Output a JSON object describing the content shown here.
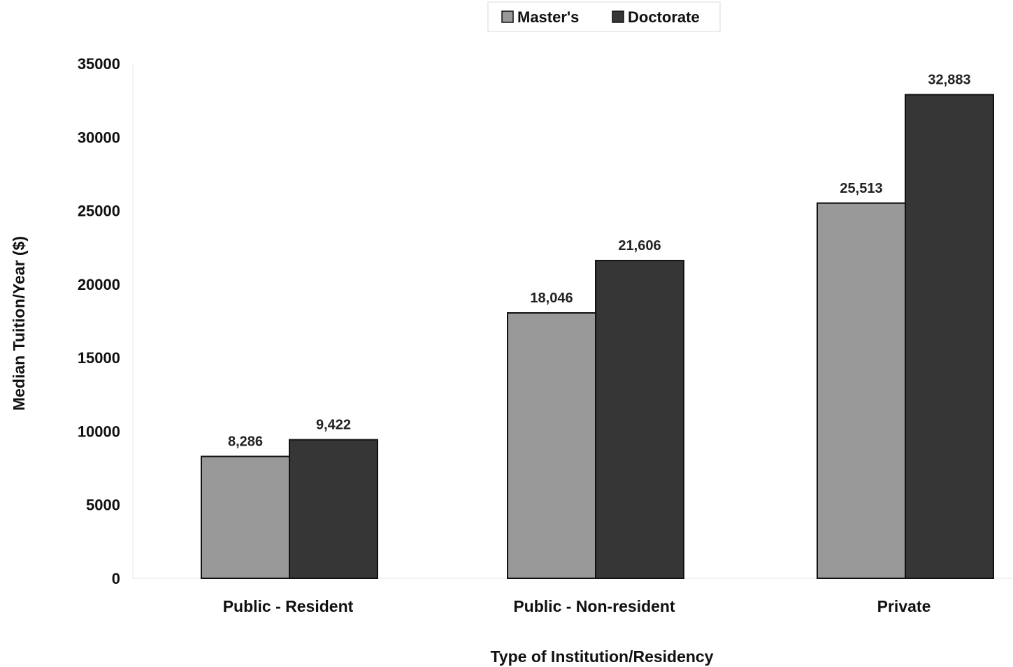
{
  "chart_data": {
    "type": "bar",
    "categories": [
      "Public - Resident",
      "Public - Non-resident",
      "Private"
    ],
    "series": [
      {
        "name": "Master's",
        "values": [
          8286,
          18046,
          25513
        ],
        "labels": [
          "8,286",
          "18,046",
          "25,513"
        ],
        "color": "#999999"
      },
      {
        "name": "Doctorate",
        "values": [
          9422,
          21606,
          32883
        ],
        "labels": [
          "9,422",
          "21,606",
          "32,883"
        ],
        "color": "#363636"
      }
    ],
    "xlabel": "Type of Institution/Residency",
    "ylabel": "Median Tuition/Year ($)",
    "ylim": [
      0,
      35000
    ],
    "yticks": [
      "0",
      "5000",
      "10000",
      "15000",
      "20000",
      "25000",
      "30000",
      "35000"
    ],
    "legend_position": "top-center",
    "grid": false
  }
}
